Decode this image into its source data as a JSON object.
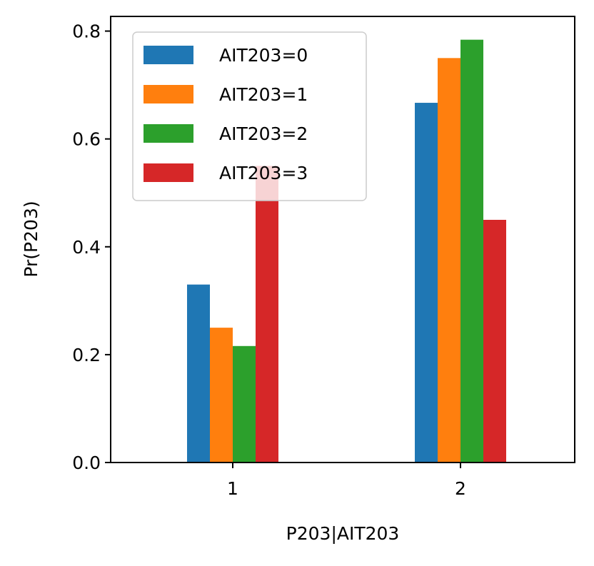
{
  "chart_data": {
    "type": "bar",
    "title": "",
    "xlabel": "P203|AIT203",
    "ylabel": "Pr(P203)",
    "categories": [
      "1",
      "2"
    ],
    "ylim": [
      0,
      0.8
    ],
    "yticks": [
      "0.0",
      "0.2",
      "0.4",
      "0.6",
      "0.8"
    ],
    "legend_position": "upper-left",
    "grid": false,
    "series": [
      {
        "name": "AIT203=0",
        "color": "#1f77b4",
        "values": [
          0.33,
          0.667
        ]
      },
      {
        "name": "AIT203=1",
        "color": "#ff7f0e",
        "values": [
          0.25,
          0.75
        ]
      },
      {
        "name": "AIT203=2",
        "color": "#2ca02c",
        "values": [
          0.216,
          0.784
        ]
      },
      {
        "name": "AIT203=3",
        "color": "#d62728",
        "values": [
          0.55,
          0.45
        ]
      }
    ]
  }
}
